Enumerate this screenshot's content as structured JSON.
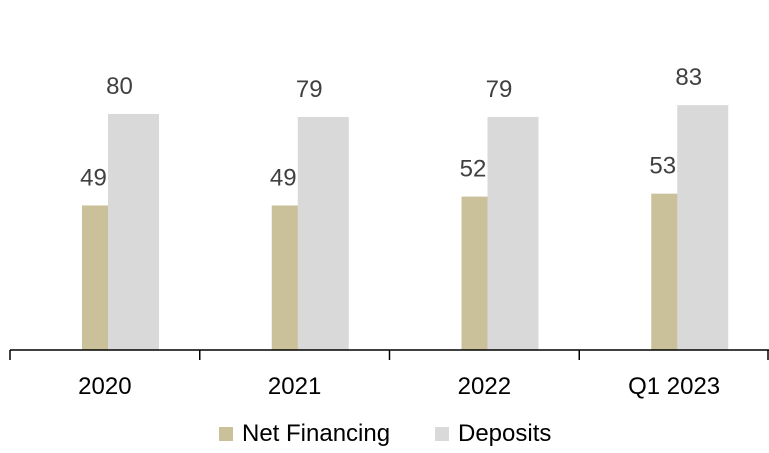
{
  "chart_data": {
    "type": "bar",
    "categories": [
      "2020",
      "2021",
      "2022",
      "Q1 2023"
    ],
    "series": [
      {
        "name": "Net Financing",
        "values": [
          49,
          49,
          52,
          53
        ],
        "color": "#cac19b"
      },
      {
        "name": "Deposits",
        "values": [
          80,
          79,
          79,
          83
        ],
        "color": "#d9d9d9"
      }
    ],
    "ylim": [
      0,
      100
    ],
    "grid": false,
    "legend_position": "bottom",
    "data_labels": true
  }
}
